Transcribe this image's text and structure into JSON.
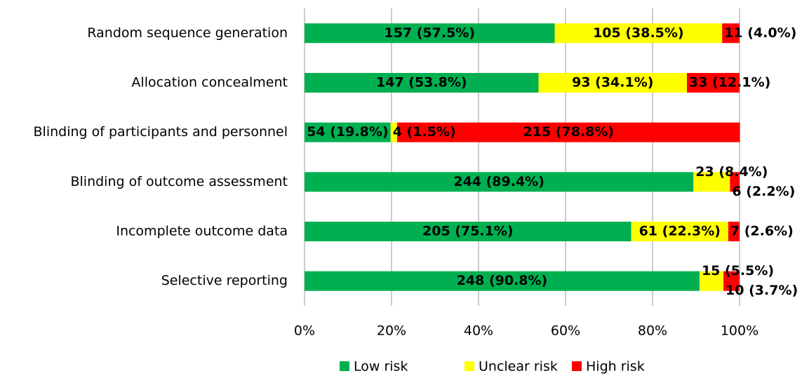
{
  "chart_data": {
    "type": "bar",
    "orientation": "horizontal",
    "stacked": true,
    "categories": [
      "Random sequence generation",
      "Allocation concealment",
      "Blinding of participants and personnel",
      "Blinding of outcome assessment",
      "Incomplete outcome data",
      "Selective reporting"
    ],
    "series": [
      {
        "name": "Low risk",
        "color": "#00b050",
        "values": [
          57.5,
          53.8,
          19.8,
          89.4,
          75.1,
          90.8
        ],
        "value_labels": [
          "157 (57.5%)",
          "147 (53.8%)",
          "54 (19.8%)",
          "244 (89.4%)",
          "205 (75.1%)",
          "248 (90.8%)"
        ]
      },
      {
        "name": "Unclear risk",
        "color": "#ffff00",
        "values": [
          38.5,
          34.1,
          1.5,
          8.4,
          22.3,
          5.5
        ],
        "value_labels": [
          "105 (38.5%)",
          "93 (34.1%)",
          "4 (1.5%)",
          "23 (8.4%)",
          "61 (22.3%)",
          "15 (5.5%)"
        ]
      },
      {
        "name": "High risk",
        "color": "#ff0000",
        "values": [
          4.0,
          12.1,
          78.8,
          2.2,
          2.6,
          3.7
        ],
        "value_labels": [
          "11 (4.0%)",
          "33 (12.1%)",
          "215 (78.8%)",
          "6 (2.2%)",
          "7 (2.6%)",
          "10 (3.7%)"
        ]
      }
    ],
    "xlim": [
      0,
      100
    ],
    "xticks": [
      {
        "value": 0,
        "label": "0%"
      },
      {
        "value": 20,
        "label": "20%"
      },
      {
        "value": 40,
        "label": "40%"
      },
      {
        "value": 60,
        "label": "60%"
      },
      {
        "value": 80,
        "label": "80%"
      },
      {
        "value": 100,
        "label": "100%"
      }
    ],
    "grid": true,
    "legend": "bottom"
  }
}
